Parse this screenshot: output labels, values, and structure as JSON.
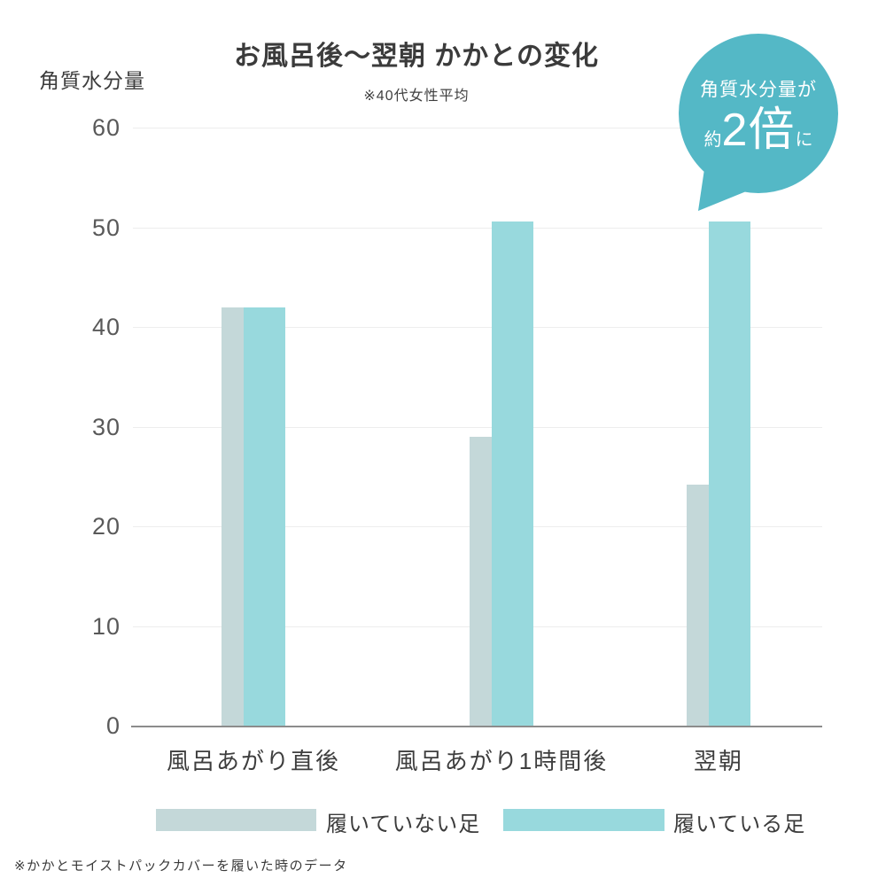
{
  "footnote": "※かかとモイストパックカバーを履いた時のデータ",
  "bubble": {
    "line1": "角質水分量が",
    "prefix": "約",
    "big": "2倍",
    "suffix": "に",
    "color": "#54b8c6"
  },
  "chart_data": {
    "type": "bar",
    "title": "お風呂後〜翌朝 かかとの変化",
    "subtitle": "※40代女性平均",
    "ylabel": "角質水分量",
    "xlabel": "",
    "categories": [
      "風呂あがり直後",
      "風呂あがり1時間後",
      "翌朝"
    ],
    "series": [
      {
        "name": "履いていない足",
        "color": "#c4d8d9",
        "values": [
          42,
          29,
          24.2
        ]
      },
      {
        "name": "履いている足",
        "color": "#98d9dd",
        "values": [
          42,
          50.6,
          50.6
        ]
      }
    ],
    "yticks": [
      0,
      10,
      20,
      30,
      40,
      50,
      60
    ],
    "ylim": [
      0,
      60
    ],
    "grid": true,
    "grid_color": "#ededed",
    "axis_color": "#8c8c8c",
    "legend_position": "bottom",
    "annotation": "角質水分量が約2倍に"
  }
}
